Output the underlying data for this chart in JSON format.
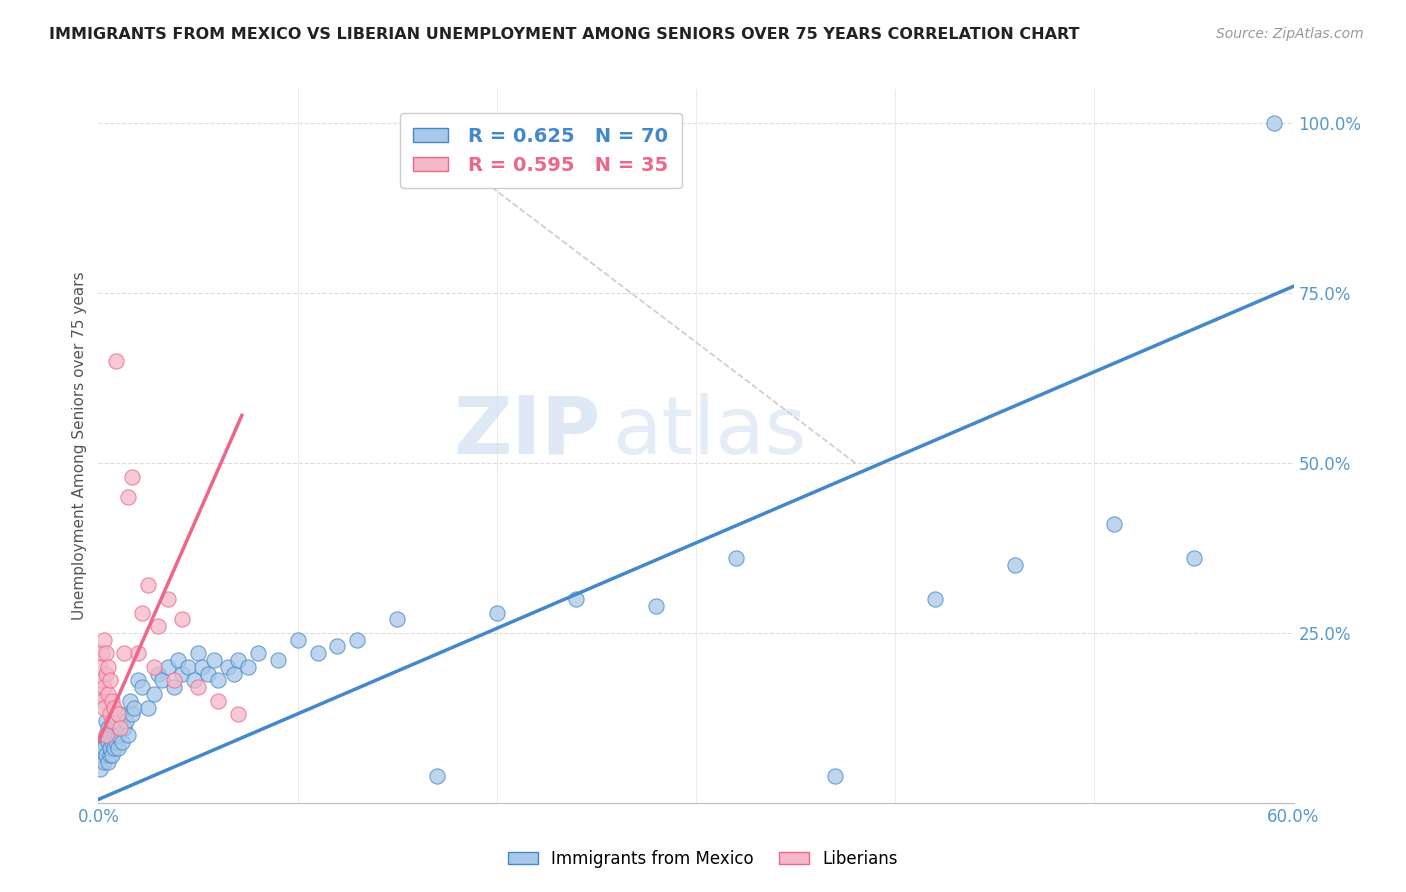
{
  "title": "IMMIGRANTS FROM MEXICO VS LIBERIAN UNEMPLOYMENT AMONG SENIORS OVER 75 YEARS CORRELATION CHART",
  "source": "Source: ZipAtlas.com",
  "ylabel": "Unemployment Among Seniors over 75 years",
  "legend_label_blue": "Immigrants from Mexico",
  "legend_label_pink": "Liberians",
  "r_blue": 0.625,
  "n_blue": 70,
  "r_pink": 0.595,
  "n_pink": 35,
  "xlim": [
    0.0,
    0.6
  ],
  "ylim": [
    0.0,
    1.05
  ],
  "color_blue": "#a8c8e8",
  "color_pink": "#f4b8c8",
  "color_blue_line": "#4488cc",
  "color_pink_line": "#ee6688",
  "color_diag": "#cccccc",
  "watermark_zip": "ZIP",
  "watermark_atlas": "atlas",
  "scatter_blue_x": [
    0.001,
    0.002,
    0.002,
    0.003,
    0.003,
    0.004,
    0.004,
    0.004,
    0.005,
    0.005,
    0.005,
    0.006,
    0.006,
    0.006,
    0.007,
    0.007,
    0.007,
    0.008,
    0.008,
    0.009,
    0.009,
    0.01,
    0.01,
    0.011,
    0.012,
    0.013,
    0.014,
    0.015,
    0.016,
    0.017,
    0.018,
    0.02,
    0.022,
    0.025,
    0.028,
    0.03,
    0.032,
    0.035,
    0.038,
    0.04,
    0.042,
    0.045,
    0.048,
    0.05,
    0.052,
    0.055,
    0.058,
    0.06,
    0.065,
    0.068,
    0.07,
    0.075,
    0.08,
    0.09,
    0.1,
    0.11,
    0.12,
    0.13,
    0.15,
    0.17,
    0.2,
    0.24,
    0.28,
    0.32,
    0.37,
    0.42,
    0.46,
    0.51,
    0.55,
    0.59
  ],
  "scatter_blue_y": [
    0.05,
    0.07,
    0.09,
    0.06,
    0.08,
    0.1,
    0.07,
    0.12,
    0.06,
    0.09,
    0.11,
    0.07,
    0.1,
    0.08,
    0.09,
    0.11,
    0.07,
    0.08,
    0.1,
    0.09,
    0.11,
    0.08,
    0.1,
    0.13,
    0.09,
    0.11,
    0.12,
    0.1,
    0.15,
    0.13,
    0.14,
    0.18,
    0.17,
    0.14,
    0.16,
    0.19,
    0.18,
    0.2,
    0.17,
    0.21,
    0.19,
    0.2,
    0.18,
    0.22,
    0.2,
    0.19,
    0.21,
    0.18,
    0.2,
    0.19,
    0.21,
    0.2,
    0.22,
    0.21,
    0.24,
    0.22,
    0.23,
    0.24,
    0.27,
    0.04,
    0.28,
    0.3,
    0.29,
    0.36,
    0.04,
    0.3,
    0.35,
    0.41,
    0.36,
    1.0
  ],
  "scatter_pink_x": [
    0.001,
    0.001,
    0.002,
    0.002,
    0.002,
    0.003,
    0.003,
    0.003,
    0.004,
    0.004,
    0.004,
    0.005,
    0.005,
    0.006,
    0.006,
    0.007,
    0.007,
    0.008,
    0.009,
    0.01,
    0.011,
    0.013,
    0.015,
    0.017,
    0.02,
    0.022,
    0.025,
    0.028,
    0.03,
    0.035,
    0.038,
    0.042,
    0.05,
    0.06,
    0.07
  ],
  "scatter_pink_y": [
    0.16,
    0.2,
    0.18,
    0.22,
    0.15,
    0.17,
    0.24,
    0.14,
    0.19,
    0.22,
    0.1,
    0.16,
    0.2,
    0.18,
    0.13,
    0.15,
    0.12,
    0.14,
    0.65,
    0.13,
    0.11,
    0.22,
    0.45,
    0.48,
    0.22,
    0.28,
    0.32,
    0.2,
    0.26,
    0.3,
    0.18,
    0.27,
    0.17,
    0.15,
    0.13
  ],
  "blue_line_x": [
    0.0,
    0.6
  ],
  "blue_line_y": [
    0.005,
    0.76
  ],
  "pink_line_x": [
    0.0,
    0.072
  ],
  "pink_line_y": [
    0.09,
    0.57
  ],
  "diag_line_x": [
    0.155,
    0.38
  ],
  "diag_line_y": [
    1.0,
    0.5
  ],
  "background_color": "#ffffff",
  "grid_color": "#dddddd",
  "grid_color2": "#e8e8e8"
}
